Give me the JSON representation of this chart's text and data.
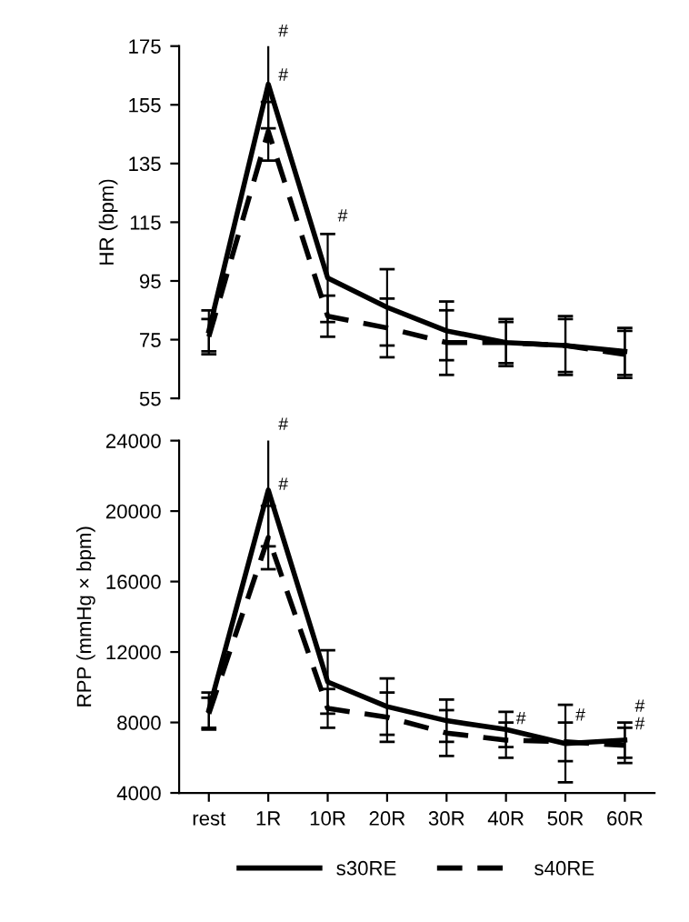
{
  "chart_data": [
    {
      "type": "line",
      "ylabel": "HR (bpm)",
      "categories": [
        "rest",
        "1R",
        "10R",
        "20R",
        "30R",
        "40R",
        "50R",
        "60R"
      ],
      "ylim": [
        55,
        175
      ],
      "yticks": [
        55,
        75,
        95,
        115,
        135,
        155,
        175
      ],
      "tick_labels": "y",
      "grid": false,
      "legend": false,
      "marker": "none",
      "series": [
        {
          "color": "#000000",
          "line_style": "solid",
          "values": [
            78,
            162,
            96,
            86,
            78,
            74,
            73,
            71
          ],
          "errors": [
            7,
            15,
            15,
            13,
            10,
            8,
            9,
            8
          ]
        },
        {
          "color": "#000000",
          "line_style": "dashed",
          "values": [
            76,
            146,
            83,
            79,
            74,
            74,
            73,
            70
          ],
          "errors": [
            6,
            10,
            7,
            10,
            11,
            7,
            10,
            8
          ]
        }
      ],
      "annotations": [
        {
          "text": "#",
          "x": "1R",
          "y": 177
        },
        {
          "text": "#",
          "x": "1R",
          "y": 162
        },
        {
          "text": "#",
          "x": "10R",
          "y": 114
        }
      ]
    },
    {
      "type": "line",
      "ylabel": "RPP (mmHg × bpm)",
      "categories": [
        "rest",
        "1R",
        "10R",
        "20R",
        "30R",
        "40R",
        "50R",
        "60R"
      ],
      "ylim": [
        4000,
        24000
      ],
      "yticks": [
        4000,
        8000,
        12000,
        16000,
        20000,
        24000
      ],
      "grid": false,
      "legend": "bottom",
      "marker": "none",
      "series": [
        {
          "name": "s30RE",
          "color": "#000000",
          "line_style": "solid",
          "values": [
            8700,
            21200,
            10300,
            8900,
            8100,
            7600,
            6800,
            7000
          ],
          "errors": [
            1000,
            3200,
            1800,
            1600,
            1200,
            1000,
            2200,
            1000
          ]
        },
        {
          "name": "s40RE",
          "color": "#000000",
          "line_style": "dashed",
          "values": [
            8500,
            18500,
            8800,
            8300,
            7400,
            7000,
            6900,
            6700
          ],
          "errors": [
            900,
            1800,
            1100,
            1400,
            1300,
            1000,
            1100,
            1000
          ]
        }
      ],
      "annotations": [
        {
          "text": "#",
          "x": "1R",
          "y": 24400
        },
        {
          "text": "#",
          "x": "1R",
          "y": 21000
        },
        {
          "text": "#",
          "x": "40R",
          "y": 7700
        },
        {
          "text": "#",
          "x": "50R",
          "y": 7900
        },
        {
          "text": "#",
          "x": "60R",
          "y": 8400
        },
        {
          "text": "#",
          "x": "60R",
          "y": 7400
        }
      ]
    }
  ]
}
